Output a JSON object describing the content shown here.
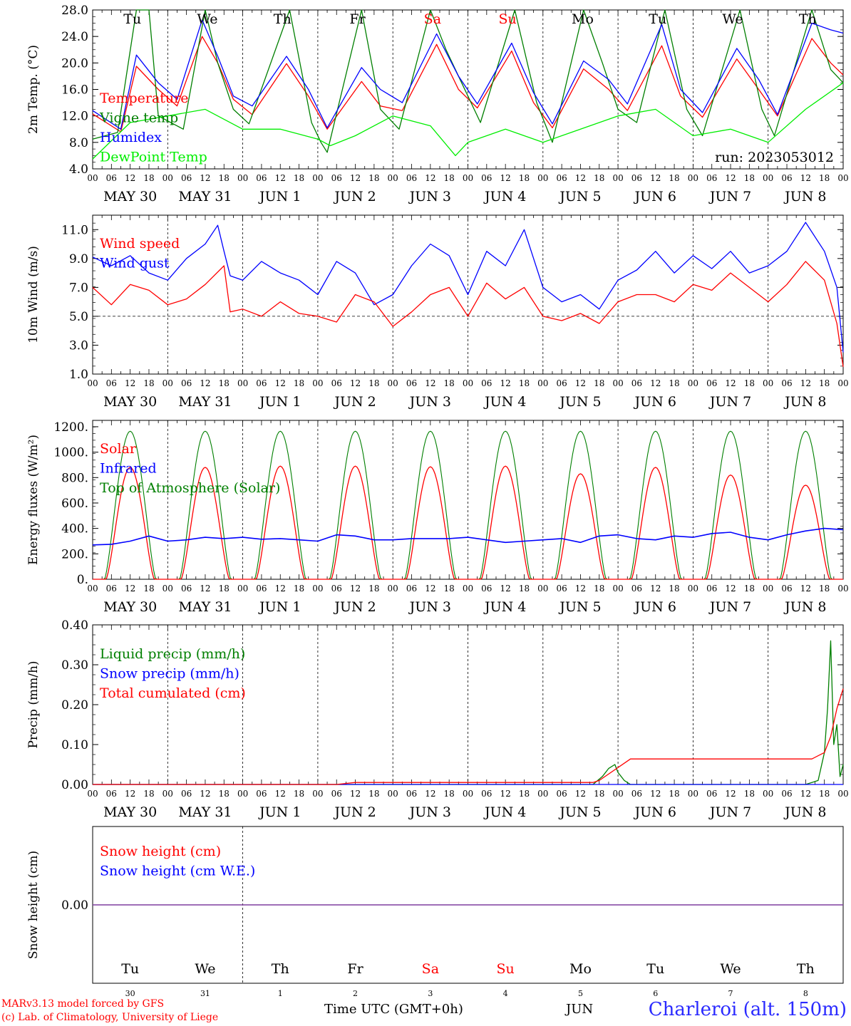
{
  "run_label": "run: 2023053012",
  "hour_ticks": [
    "00",
    "06",
    "12",
    "18"
  ],
  "final_hour": "00",
  "day_dates": [
    "MAY 30",
    "MAY 31",
    "JUN  1",
    "JUN  2",
    "JUN  3",
    "JUN  4",
    "JUN  5",
    "JUN  6",
    "JUN  7",
    "JUN  8"
  ],
  "weekdays": [
    {
      "label": "Tu",
      "color": "#000000"
    },
    {
      "label": "We",
      "color": "#000000"
    },
    {
      "label": "Th",
      "color": "#000000"
    },
    {
      "label": "Fr",
      "color": "#000000"
    },
    {
      "label": "Sa",
      "color": "#ff0000"
    },
    {
      "label": "Su",
      "color": "#ff0000"
    },
    {
      "label": "Mo",
      "color": "#000000"
    },
    {
      "label": "Tu",
      "color": "#000000"
    },
    {
      "label": "We",
      "color": "#000000"
    },
    {
      "label": "Th",
      "color": "#000000"
    }
  ],
  "bottom_day_numbers": [
    "30",
    "31",
    "1",
    "2",
    "3",
    "4",
    "5",
    "6",
    "7",
    "8"
  ],
  "footer": {
    "credit_line1": "MARv3.13 model forced by GFS",
    "credit_line2": "(c) Lab. of Climatology, University of Liege",
    "time_axis": "Time UTC (GMT+0h)",
    "month": "JUN",
    "station": "Charleroi (alt. 150m)"
  },
  "chart_data": [
    {
      "id": "temp",
      "type": "line",
      "ylabel": "2m Temp. (°C)",
      "ylim": [
        4.0,
        28.0
      ],
      "yticks": [
        "4.0",
        "8.0",
        "12.0",
        "16.0",
        "20.0",
        "24.0",
        "28.0"
      ],
      "x_unit": "hours since May 30 00 UTC",
      "xlim": [
        0,
        240
      ],
      "series": [
        {
          "name": "Temperature",
          "color": "#ff0000",
          "x": [
            0,
            9,
            14,
            21,
            27,
            35,
            40,
            45,
            51,
            62,
            69,
            75,
            86,
            92,
            99,
            110,
            117,
            123,
            134,
            141,
            147,
            157,
            165,
            171,
            182,
            188,
            195,
            206,
            213,
            219,
            230,
            236,
            240
          ],
          "values": [
            12.3,
            9.6,
            19.5,
            16.0,
            13.5,
            24.0,
            20.0,
            14.5,
            12.2,
            19.9,
            15.0,
            10.0,
            17.2,
            13.5,
            12.8,
            22.8,
            16.0,
            13.2,
            21.8,
            14.0,
            10.2,
            19.1,
            16.0,
            12.8,
            22.6,
            15.0,
            11.8,
            20.6,
            16.0,
            12.0,
            23.7,
            20.0,
            18.2
          ]
        },
        {
          "name": "Vigne temp",
          "color": "#007f00",
          "x": [
            0,
            8,
            14,
            18,
            21,
            29,
            36,
            40,
            45,
            50,
            63,
            70,
            73,
            75,
            86,
            92,
            98,
            108,
            113,
            118,
            124,
            135,
            142,
            147,
            157,
            163,
            168,
            174,
            183,
            190,
            195,
            207,
            214,
            218,
            230,
            236,
            240
          ],
          "values": [
            8.5,
            9.5,
            28.0,
            28.0,
            12.0,
            10.0,
            28.0,
            20.0,
            13.0,
            10.8,
            28.0,
            11.0,
            8.0,
            6.5,
            28.0,
            13.0,
            10.0,
            28.0,
            22.0,
            17.0,
            11.0,
            28.0,
            14.0,
            8.0,
            28.0,
            20.0,
            13.0,
            11.0,
            28.0,
            13.0,
            9.0,
            28.0,
            13.0,
            9.0,
            28.0,
            19.0,
            17.0
          ]
        },
        {
          "name": "Humidex",
          "color": "#0000ff",
          "x": [
            0,
            9,
            14,
            21,
            27,
            35,
            40,
            45,
            51,
            62,
            69,
            75,
            86,
            92,
            99,
            110,
            117,
            123,
            134,
            141,
            147,
            157,
            165,
            171,
            182,
            188,
            195,
            206,
            213,
            219,
            230,
            236,
            240
          ],
          "values": [
            12.8,
            10.0,
            21.2,
            17.0,
            14.5,
            26.5,
            21.0,
            15.0,
            13.5,
            21.0,
            16.0,
            10.2,
            19.3,
            16.0,
            14.0,
            24.4,
            18.0,
            13.8,
            23.0,
            15.5,
            10.8,
            20.3,
            17.5,
            13.8,
            25.8,
            16.0,
            12.5,
            22.2,
            17.5,
            12.2,
            26.0,
            25.0,
            24.5
          ]
        },
        {
          "name": "DewPoint Temp",
          "color": "#00ee00",
          "x": [
            0,
            12,
            24,
            36,
            48,
            60,
            72,
            76,
            84,
            96,
            108,
            116,
            120,
            132,
            144,
            156,
            168,
            180,
            192,
            204,
            216,
            228,
            240
          ],
          "values": [
            5.5,
            11.0,
            12.0,
            13.0,
            10.0,
            10.0,
            8.5,
            7.5,
            9.0,
            12.0,
            10.5,
            6.0,
            8.0,
            10.0,
            8.0,
            10.0,
            12.0,
            13.0,
            9.0,
            10.0,
            8.0,
            13.0,
            17.0
          ]
        }
      ]
    },
    {
      "id": "wind",
      "type": "line",
      "ylabel": "10m Wind (m/s)",
      "ylim": [
        1.0,
        12.0
      ],
      "yticks": [
        "1.0",
        "3.0",
        "5.0",
        "7.0",
        "9.0",
        "11.0"
      ],
      "reference_line": 5.0,
      "xlim": [
        0,
        240
      ],
      "series": [
        {
          "name": "Wind speed",
          "color": "#ff0000",
          "x": [
            0,
            6,
            12,
            18,
            24,
            30,
            36,
            42,
            44,
            48,
            54,
            60,
            66,
            72,
            78,
            84,
            90,
            96,
            102,
            108,
            114,
            120,
            126,
            132,
            138,
            144,
            150,
            156,
            162,
            168,
            174,
            180,
            186,
            192,
            198,
            204,
            210,
            216,
            222,
            228,
            234,
            238,
            240
          ],
          "values": [
            7.0,
            5.8,
            7.2,
            6.8,
            5.8,
            6.2,
            7.2,
            8.5,
            5.3,
            5.5,
            5.0,
            6.0,
            5.2,
            5.0,
            4.6,
            6.5,
            6.0,
            4.3,
            5.3,
            6.5,
            7.0,
            5.0,
            7.3,
            6.2,
            7.0,
            5.0,
            4.7,
            5.2,
            4.5,
            6.0,
            6.5,
            6.5,
            6.0,
            7.2,
            6.8,
            8.0,
            7.0,
            6.0,
            7.2,
            8.8,
            7.5,
            4.5,
            1.5
          ]
        },
        {
          "name": "Wind gust",
          "color": "#0000ff",
          "x": [
            0,
            6,
            12,
            18,
            24,
            30,
            36,
            40,
            42,
            44,
            48,
            54,
            60,
            66,
            72,
            78,
            84,
            90,
            96,
            102,
            108,
            114,
            120,
            126,
            132,
            138,
            144,
            150,
            156,
            162,
            168,
            174,
            180,
            186,
            192,
            198,
            204,
            210,
            216,
            222,
            228,
            234,
            238,
            240
          ],
          "values": [
            9.1,
            8.5,
            9.2,
            8.0,
            7.5,
            9.0,
            10.0,
            11.3,
            9.5,
            7.8,
            7.5,
            8.8,
            8.0,
            7.5,
            6.5,
            8.8,
            8.0,
            5.8,
            6.5,
            8.5,
            10.0,
            9.2,
            6.5,
            9.5,
            8.5,
            11.0,
            7.0,
            6.0,
            6.5,
            5.5,
            7.5,
            8.2,
            9.5,
            8.0,
            9.2,
            8.3,
            9.5,
            8.0,
            8.5,
            9.5,
            11.5,
            9.5,
            7.0,
            2.5
          ]
        }
      ]
    },
    {
      "id": "energy",
      "type": "line",
      "ylabel": "Energy fluxes (W/m²)",
      "ylim": [
        0,
        1250
      ],
      "yticks": [
        "0.",
        "200.",
        "400.",
        "600.",
        "800.",
        "1000.",
        "1200."
      ],
      "xlim": [
        0,
        240
      ],
      "daily_peaks": {
        "Solar": [
          880,
          880,
          890,
          890,
          885,
          890,
          830,
          880,
          820,
          740
        ],
        "Top of Atmosphere (Solar)": [
          1165,
          1165,
          1165,
          1165,
          1165,
          1165,
          1165,
          1165,
          1165,
          1165
        ]
      },
      "series": [
        {
          "name": "Solar",
          "color": "#ff0000"
        },
        {
          "name": "Infrared",
          "color": "#0000ff",
          "x": [
            0,
            6,
            12,
            18,
            24,
            30,
            36,
            42,
            48,
            54,
            60,
            66,
            72,
            78,
            84,
            90,
            96,
            102,
            108,
            114,
            120,
            126,
            132,
            138,
            144,
            150,
            156,
            162,
            168,
            174,
            180,
            186,
            192,
            198,
            204,
            210,
            216,
            222,
            228,
            234,
            240
          ],
          "values": [
            270,
            275,
            300,
            340,
            300,
            310,
            330,
            320,
            330,
            315,
            320,
            310,
            300,
            350,
            340,
            310,
            310,
            320,
            320,
            320,
            330,
            310,
            290,
            300,
            310,
            320,
            290,
            340,
            350,
            320,
            310,
            340,
            330,
            360,
            370,
            330,
            310,
            350,
            380,
            400,
            390
          ]
        },
        {
          "name": "Top of Atmosphere (Solar)",
          "color": "#007f00"
        }
      ]
    },
    {
      "id": "precip",
      "type": "line",
      "ylabel": "Precip (mm/h)",
      "ylim": [
        0.0,
        0.4
      ],
      "yticks": [
        "0.00",
        "0.10",
        "0.20",
        "0.30",
        "0.40"
      ],
      "xlim": [
        0,
        240
      ],
      "series": [
        {
          "name": "Liquid precip (mm/h)",
          "color": "#007f00",
          "x": [
            0,
            160,
            163,
            165,
            167,
            168,
            170,
            172,
            228,
            232,
            234,
            235,
            236,
            237,
            238,
            239,
            240
          ],
          "values": [
            0,
            0,
            0.02,
            0.04,
            0.05,
            0.03,
            0.01,
            0,
            0,
            0.01,
            0.08,
            0.19,
            0.36,
            0.1,
            0.15,
            0.02,
            0.05
          ]
        },
        {
          "name": "Snow precip (mm/h)",
          "color": "#0000ff",
          "x": [
            0,
            240
          ],
          "values": [
            0,
            0
          ]
        },
        {
          "name": "Total cumulated (cm)",
          "color": "#ff0000",
          "x": [
            0,
            78,
            84,
            160,
            162,
            172,
            230,
            234,
            236,
            238,
            240
          ],
          "values": [
            0,
            0,
            0.005,
            0.005,
            0.01,
            0.064,
            0.064,
            0.08,
            0.12,
            0.19,
            0.24
          ]
        }
      ]
    },
    {
      "id": "snow",
      "type": "line",
      "ylabel": "Snow height (cm)",
      "yticks": [
        "0.00"
      ],
      "xlim": [
        0,
        240
      ],
      "series": [
        {
          "name": "Snow height (cm)",
          "color": "#ff0000",
          "x": [
            0,
            240
          ],
          "values": [
            0,
            0
          ]
        },
        {
          "name": "Snow height (cm W.E.)",
          "color": "#0000ff",
          "x": [
            0,
            240
          ],
          "values": [
            0,
            0
          ]
        }
      ]
    }
  ]
}
